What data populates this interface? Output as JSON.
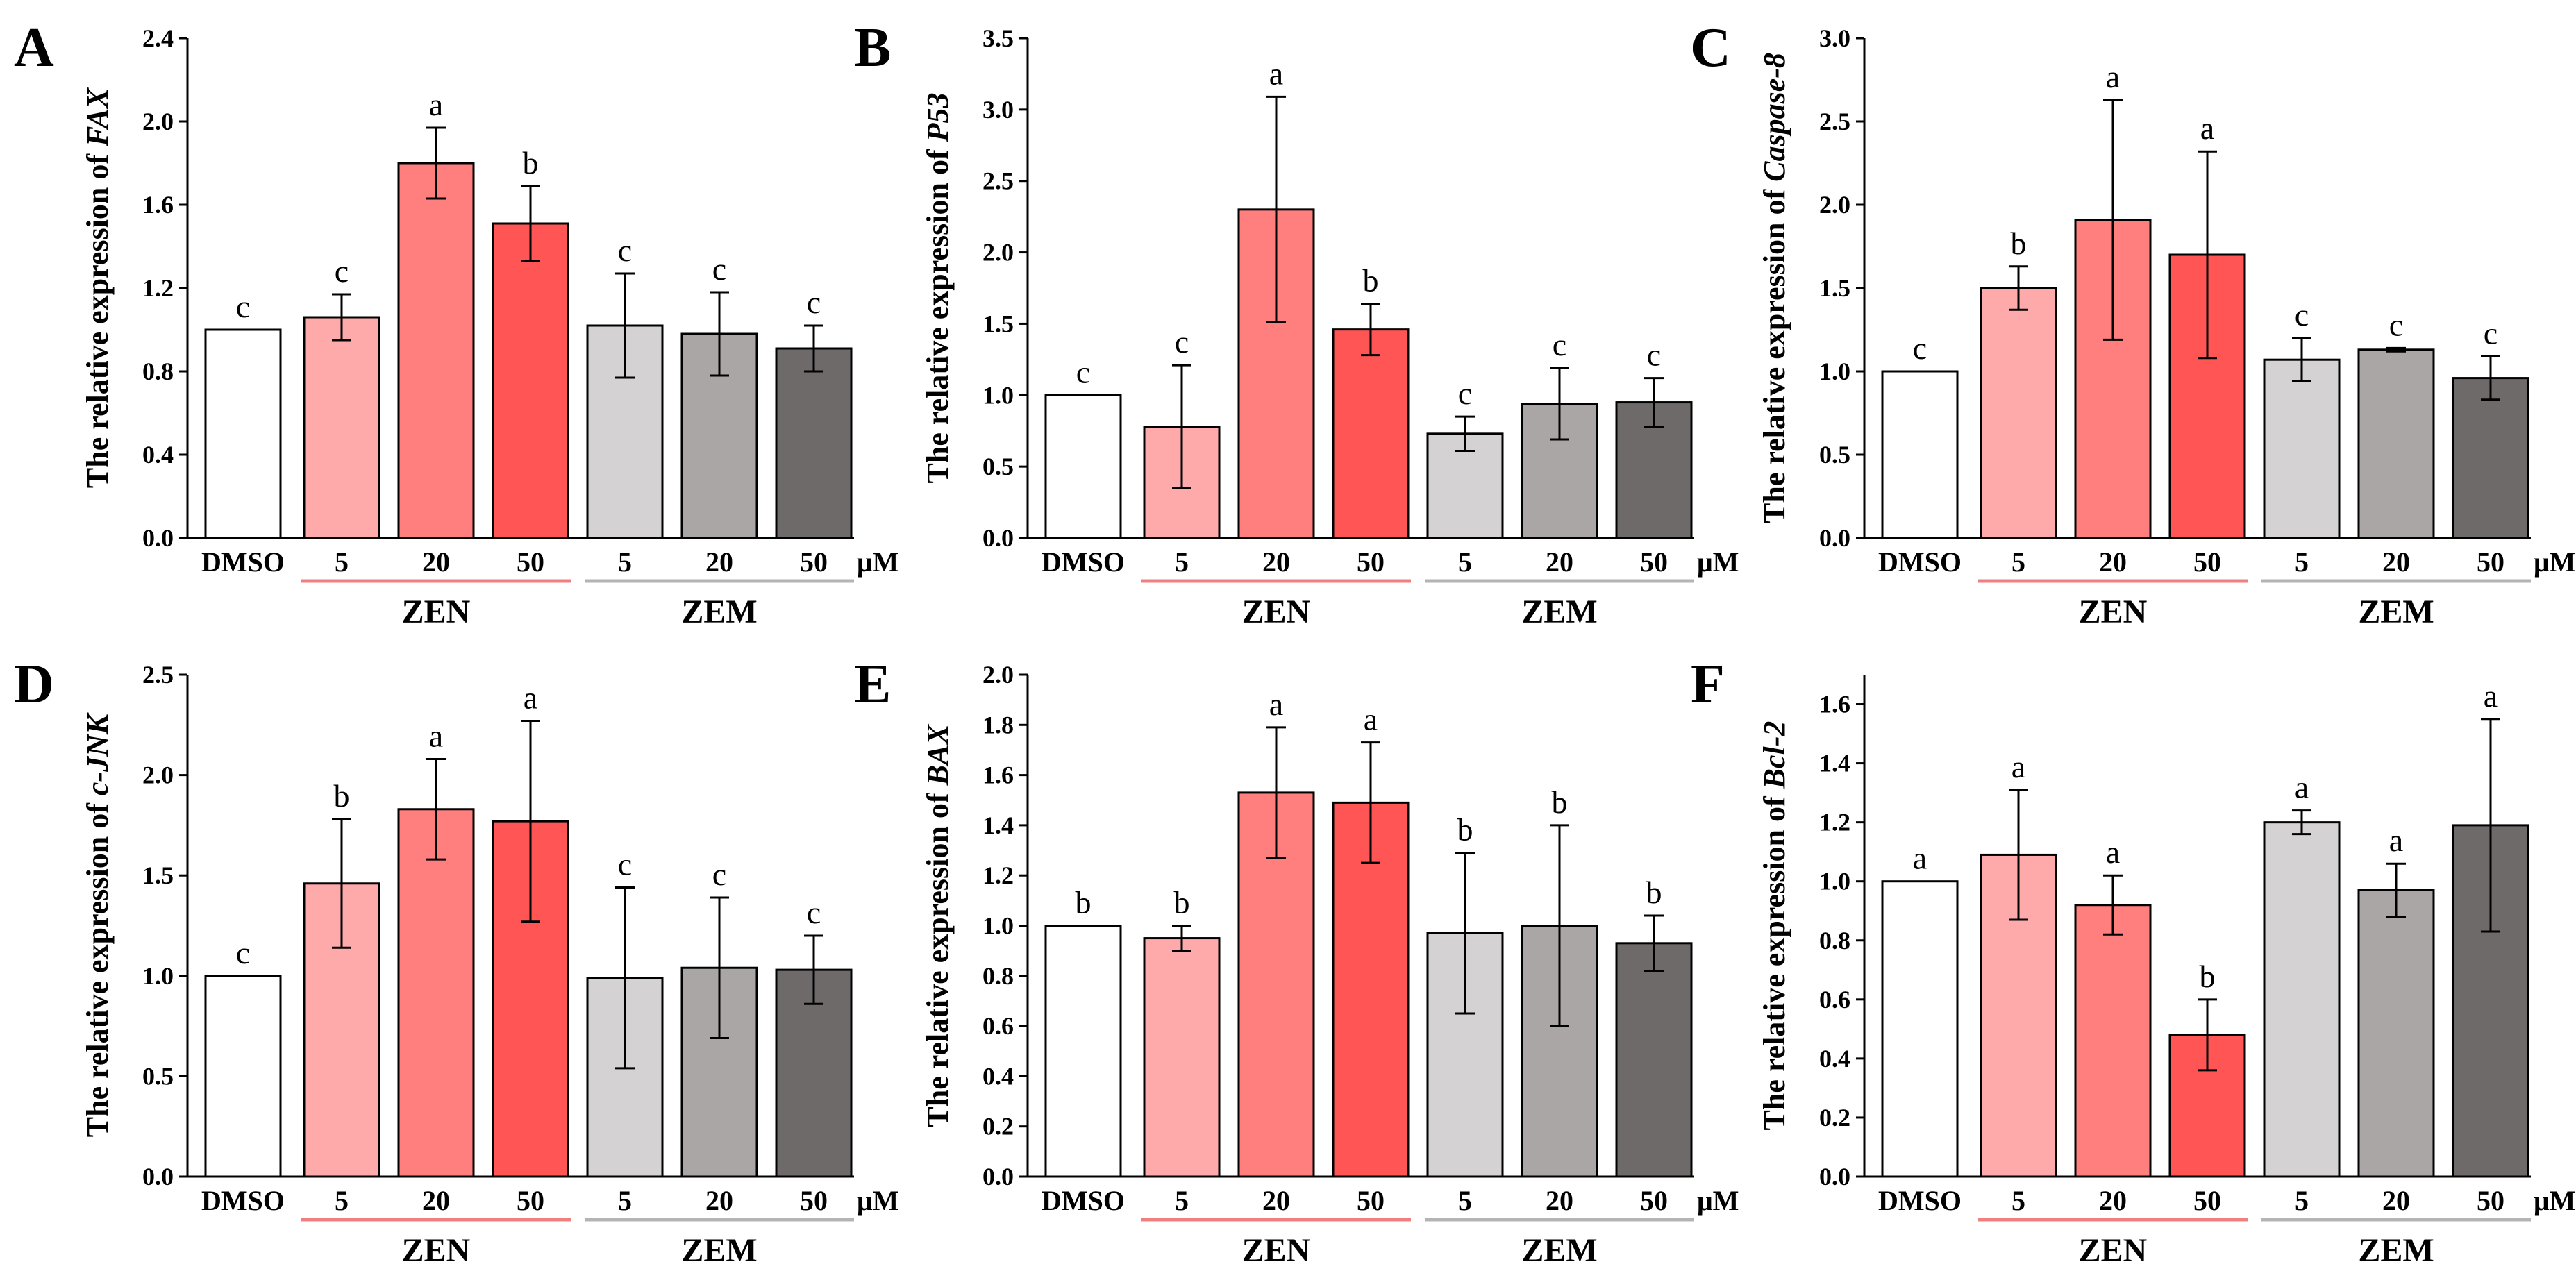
{
  "chart_data": [
    {
      "panel": "A",
      "type": "bar",
      "ylabel_prefix": "The relative expression of ",
      "gene": "FAX",
      "ylim": [
        0,
        2.4
      ],
      "yticks": [
        "0.0",
        "0.4",
        "0.8",
        "1.2",
        "1.6",
        "2.0",
        "2.4"
      ],
      "categories": [
        "DMSO",
        "5",
        "20",
        "50",
        "5",
        "20",
        "50"
      ],
      "unit": "μM",
      "groups": [
        "ZEN",
        "ZEM"
      ],
      "values": [
        1.0,
        1.06,
        1.8,
        1.51,
        1.02,
        0.98,
        0.91
      ],
      "errors": [
        0,
        0.11,
        0.17,
        0.18,
        0.25,
        0.2,
        0.11
      ],
      "letters": [
        "c",
        "c",
        "a",
        "b",
        "c",
        "c",
        "c"
      ]
    },
    {
      "panel": "B",
      "type": "bar",
      "ylabel_prefix": "The relative expression of ",
      "gene": "P53",
      "ylim": [
        0,
        3.5
      ],
      "yticks": [
        "0.0",
        "0.5",
        "1.0",
        "1.5",
        "2.0",
        "2.5",
        "3.0",
        "3.5"
      ],
      "categories": [
        "DMSO",
        "5",
        "20",
        "50",
        "5",
        "20",
        "50"
      ],
      "unit": "μM",
      "groups": [
        "ZEN",
        "ZEM"
      ],
      "values": [
        1.0,
        0.78,
        2.3,
        1.46,
        0.73,
        0.94,
        0.95
      ],
      "errors": [
        0,
        0.43,
        0.79,
        0.18,
        0.12,
        0.25,
        0.17
      ],
      "letters": [
        "c",
        "c",
        "a",
        "b",
        "c",
        "c",
        "c"
      ]
    },
    {
      "panel": "C",
      "type": "bar",
      "ylabel_prefix": "The relative expression of ",
      "gene": "Caspase-8",
      "ylim": [
        0,
        3.0
      ],
      "yticks": [
        "0.0",
        "0.5",
        "1.0",
        "1.5",
        "2.0",
        "2.5",
        "3.0"
      ],
      "categories": [
        "DMSO",
        "5",
        "20",
        "50",
        "5",
        "20",
        "50"
      ],
      "unit": "μM",
      "groups": [
        "ZEN",
        "ZEM"
      ],
      "values": [
        1.0,
        1.5,
        1.91,
        1.7,
        1.07,
        1.13,
        0.96
      ],
      "errors": [
        0,
        0.13,
        0.72,
        0.62,
        0.13,
        0.01,
        0.13
      ],
      "letters": [
        "c",
        "b",
        "a",
        "a",
        "c",
        "c",
        "c"
      ]
    },
    {
      "panel": "D",
      "type": "bar",
      "ylabel_prefix": "The relative expression of ",
      "gene": "c-JNK",
      "ylim": [
        0,
        2.5
      ],
      "yticks": [
        "0.0",
        "0.5",
        "1.0",
        "1.5",
        "2.0",
        "2.5"
      ],
      "categories": [
        "DMSO",
        "5",
        "20",
        "50",
        "5",
        "20",
        "50"
      ],
      "unit": "μM",
      "groups": [
        "ZEN",
        "ZEM"
      ],
      "values": [
        1.0,
        1.46,
        1.83,
        1.77,
        0.99,
        1.04,
        1.03
      ],
      "errors": [
        0,
        0.32,
        0.25,
        0.5,
        0.45,
        0.35,
        0.17
      ],
      "letters": [
        "c",
        "b",
        "a",
        "a",
        "c",
        "c",
        "c"
      ]
    },
    {
      "panel": "E",
      "type": "bar",
      "ylabel_prefix": "The relative expression of ",
      "gene": "BAX",
      "ylim": [
        0,
        2.0
      ],
      "yticks": [
        "0.0",
        "0.2",
        "0.4",
        "0.6",
        "0.8",
        "1.0",
        "1.2",
        "1.4",
        "1.6",
        "1.8",
        "2.0"
      ],
      "categories": [
        "DMSO",
        "5",
        "20",
        "50",
        "5",
        "20",
        "50"
      ],
      "unit": "μM",
      "groups": [
        "ZEN",
        "ZEM"
      ],
      "values": [
        1.0,
        0.95,
        1.53,
        1.49,
        0.97,
        1.0,
        0.93
      ],
      "errors": [
        0,
        0.05,
        0.26,
        0.24,
        0.32,
        0.4,
        0.11
      ],
      "letters": [
        "b",
        "b",
        "a",
        "a",
        "b",
        "b",
        "b"
      ]
    },
    {
      "panel": "F",
      "type": "bar",
      "ylabel_prefix": "The relative expression of ",
      "gene": "Bcl-2",
      "ylim": [
        0,
        1.7
      ],
      "yticks": [
        "0.0",
        "0.2",
        "0.4",
        "0.6",
        "0.8",
        "1.0",
        "1.2",
        "1.4",
        "1.6"
      ],
      "categories": [
        "DMSO",
        "5",
        "20",
        "50",
        "5",
        "20",
        "50"
      ],
      "unit": "μM",
      "groups": [
        "ZEN",
        "ZEM"
      ],
      "values": [
        1.0,
        1.09,
        0.92,
        0.48,
        1.2,
        0.97,
        1.19
      ],
      "errors": [
        0,
        0.22,
        0.1,
        0.12,
        0.04,
        0.09,
        0.36
      ],
      "letters": [
        "a",
        "a",
        "a",
        "b",
        "a",
        "a",
        "a"
      ]
    }
  ],
  "colors": {
    "bars": [
      "#ffffff",
      "#ffaaaa",
      "#ff7f7f",
      "#ff5555",
      "#d4d2d2",
      "#aaa6a6",
      "#6e6a6a"
    ],
    "zen_line": "#f08080",
    "zem_line": "#b4b4b4",
    "axis": "#000000"
  }
}
